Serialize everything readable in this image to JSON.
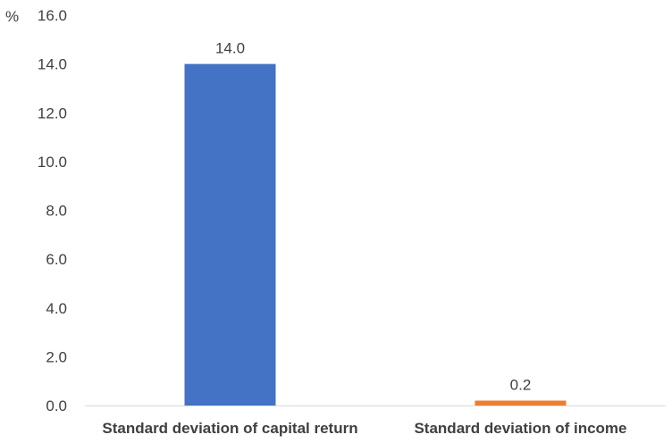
{
  "chart_data": {
    "type": "bar",
    "unit_label": "%",
    "categories": [
      "Standard deviation of capital return",
      "Standard deviation of income"
    ],
    "values": [
      14.0,
      0.2
    ],
    "data_labels": [
      "14.0",
      "0.2"
    ],
    "colors": [
      "#4472C4",
      "#ED7D31"
    ],
    "ylim": [
      0,
      16
    ],
    "yticks": [
      0,
      2,
      4,
      6,
      8,
      10,
      12,
      14,
      16
    ],
    "ytick_labels": [
      "0.0",
      "2.0",
      "4.0",
      "6.0",
      "8.0",
      "10.0",
      "12.0",
      "14.0",
      "16.0"
    ],
    "grid": false,
    "legend": "none"
  },
  "colors": {
    "axis": "#D9D9D9",
    "text": "#404040"
  }
}
